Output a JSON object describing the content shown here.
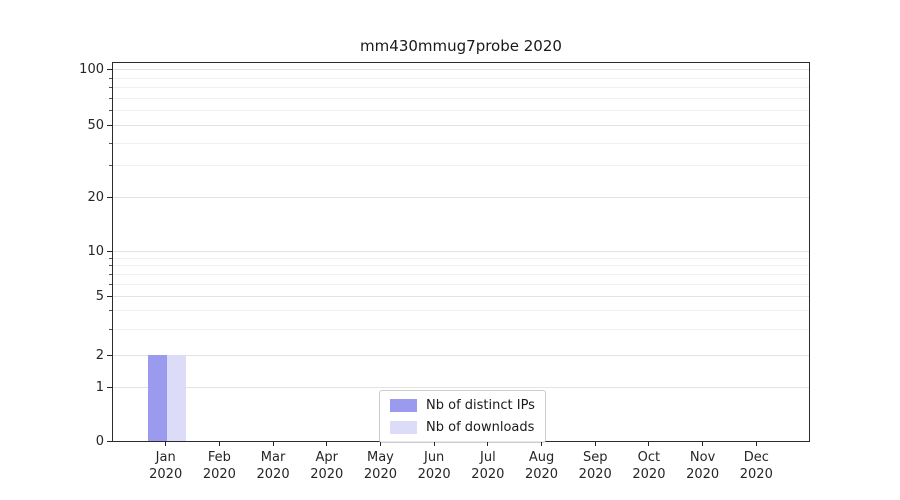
{
  "chart_data": {
    "type": "bar",
    "title": "mm430mmug7probe 2020",
    "categories": [
      {
        "month": "Jan",
        "year": "2020"
      },
      {
        "month": "Feb",
        "year": "2020"
      },
      {
        "month": "Mar",
        "year": "2020"
      },
      {
        "month": "Apr",
        "year": "2020"
      },
      {
        "month": "May",
        "year": "2020"
      },
      {
        "month": "Jun",
        "year": "2020"
      },
      {
        "month": "Jul",
        "year": "2020"
      },
      {
        "month": "Aug",
        "year": "2020"
      },
      {
        "month": "Sep",
        "year": "2020"
      },
      {
        "month": "Oct",
        "year": "2020"
      },
      {
        "month": "Nov",
        "year": "2020"
      },
      {
        "month": "Dec",
        "year": "2020"
      }
    ],
    "series": [
      {
        "name": "Nb of distinct IPs",
        "color": "#9a9aee",
        "values": [
          2,
          0,
          0,
          0,
          0,
          0,
          0,
          0,
          0,
          0,
          0,
          0
        ]
      },
      {
        "name": "Nb of downloads",
        "color": "#dcdcf8",
        "values": [
          2,
          0,
          0,
          0,
          0,
          0,
          0,
          0,
          0,
          0,
          0,
          0
        ]
      }
    ],
    "y_axis": {
      "scale": "symlog",
      "ticks": [
        0,
        1,
        2,
        5,
        10,
        20,
        50,
        100
      ]
    },
    "grid": true,
    "legend_position": "lower center"
  }
}
